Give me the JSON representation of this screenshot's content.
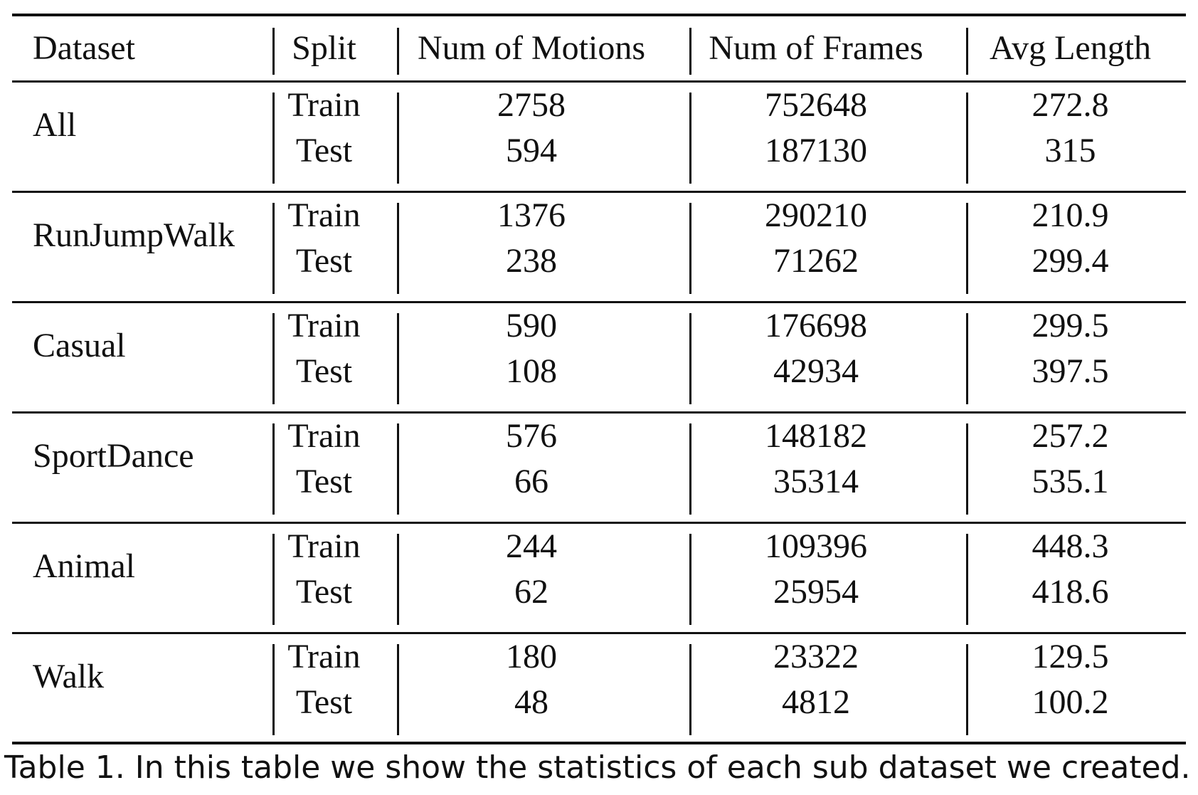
{
  "table": {
    "headers": [
      "Dataset",
      "Split",
      "Num of Motions",
      "Num of Frames",
      "Avg Length"
    ],
    "groups": [
      {
        "dataset": "All",
        "rows": [
          {
            "split": "Train",
            "motions": "2758",
            "frames": "752648",
            "avg": "272.8"
          },
          {
            "split": "Test",
            "motions": "594",
            "frames": "187130",
            "avg": "315"
          }
        ]
      },
      {
        "dataset": "RunJumpWalk",
        "rows": [
          {
            "split": "Train",
            "motions": "1376",
            "frames": "290210",
            "avg": "210.9"
          },
          {
            "split": "Test",
            "motions": "238",
            "frames": "71262",
            "avg": "299.4"
          }
        ]
      },
      {
        "dataset": "Casual",
        "rows": [
          {
            "split": "Train",
            "motions": "590",
            "frames": "176698",
            "avg": "299.5"
          },
          {
            "split": "Test",
            "motions": "108",
            "frames": "42934",
            "avg": "397.5"
          }
        ]
      },
      {
        "dataset": "SportDance",
        "rows": [
          {
            "split": "Train",
            "motions": "576",
            "frames": "148182",
            "avg": "257.2"
          },
          {
            "split": "Test",
            "motions": "66",
            "frames": "35314",
            "avg": "535.1"
          }
        ]
      },
      {
        "dataset": "Animal",
        "rows": [
          {
            "split": "Train",
            "motions": "244",
            "frames": "109396",
            "avg": "448.3"
          },
          {
            "split": "Test",
            "motions": "62",
            "frames": "25954",
            "avg": "418.6"
          }
        ]
      },
      {
        "dataset": "Walk",
        "rows": [
          {
            "split": "Train",
            "motions": "180",
            "frames": "23322",
            "avg": "129.5"
          },
          {
            "split": "Test",
            "motions": "48",
            "frames": "4812",
            "avg": "100.2"
          }
        ]
      }
    ]
  },
  "caption": "Table 1.  In this table we show the statistics of each sub dataset we created."
}
